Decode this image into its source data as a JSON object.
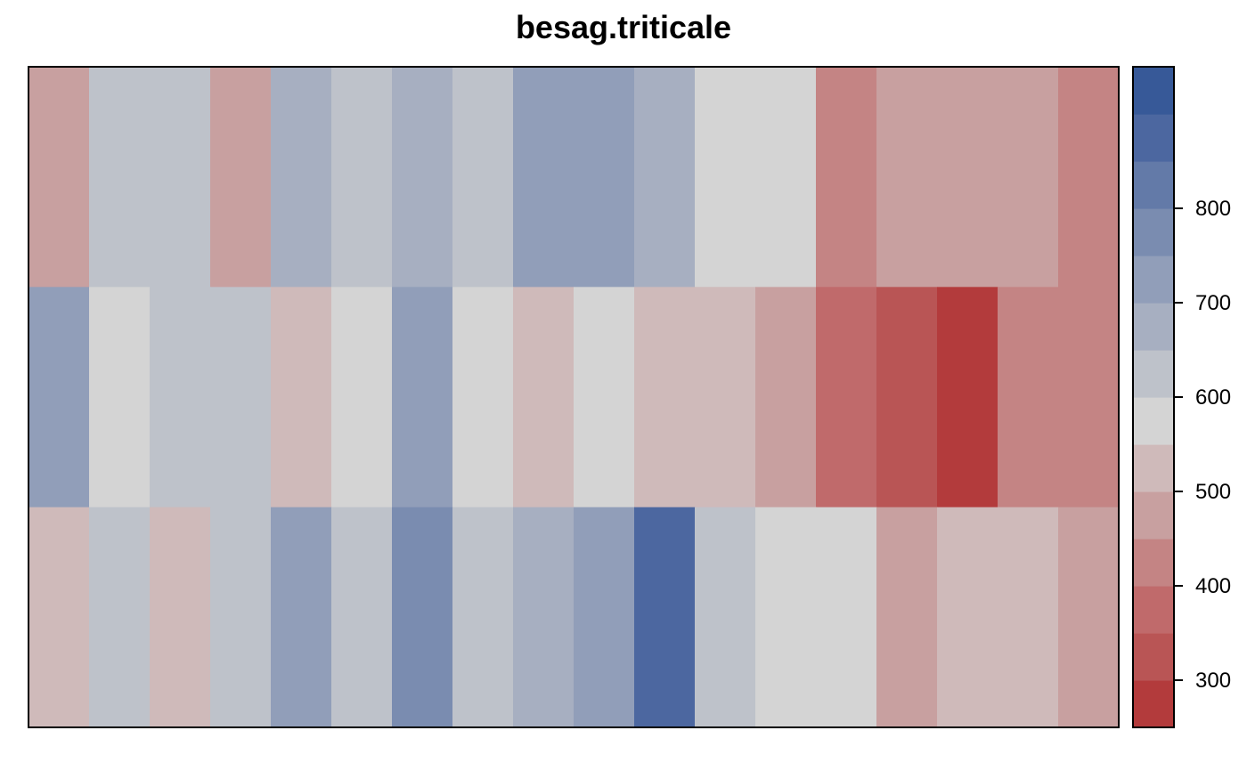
{
  "chart_data": {
    "type": "heatmap",
    "title": "besag.triticale",
    "xlabel": "",
    "ylabel": "",
    "n_cols": 18,
    "n_rows": 3,
    "rows_top_to_bottom": [
      [
        450,
        600,
        600,
        490,
        650,
        600,
        650,
        600,
        700,
        700,
        650,
        550,
        550,
        400,
        490,
        450,
        450,
        400
      ],
      [
        700,
        550,
        600,
        600,
        500,
        550,
        700,
        550,
        500,
        550,
        500,
        500,
        450,
        350,
        320,
        270,
        400,
        400
      ],
      [
        500,
        600,
        500,
        600,
        700,
        600,
        780,
        600,
        650,
        700,
        870,
        600,
        550,
        550,
        450,
        500,
        500,
        450
      ]
    ],
    "colorbar": {
      "min": 250,
      "max": 900,
      "ticks": [
        300,
        400,
        500,
        600,
        700,
        800
      ],
      "tick_labels": [
        "300",
        "400",
        "500",
        "600",
        "700",
        "800"
      ],
      "bins": [
        {
          "from": 250,
          "to": 300,
          "color": "#b33b3c"
        },
        {
          "from": 300,
          "to": 350,
          "color": "#b95555"
        },
        {
          "from": 350,
          "to": 400,
          "color": "#c06a6b"
        },
        {
          "from": 400,
          "to": 450,
          "color": "#c48484"
        },
        {
          "from": 450,
          "to": 500,
          "color": "#c8a0a0"
        },
        {
          "from": 500,
          "to": 550,
          "color": "#cfbaba"
        },
        {
          "from": 550,
          "to": 600,
          "color": "#d4d4d4"
        },
        {
          "from": 600,
          "to": 650,
          "color": "#bec2ca"
        },
        {
          "from": 650,
          "to": 700,
          "color": "#a7afc1"
        },
        {
          "from": 700,
          "to": 750,
          "color": "#919eb9"
        },
        {
          "from": 750,
          "to": 800,
          "color": "#7a8cb0"
        },
        {
          "from": 800,
          "to": 850,
          "color": "#637aa8"
        },
        {
          "from": 850,
          "to": 900,
          "color": "#4c67a0"
        },
        {
          "from": 900,
          "to": 950,
          "color": "#375998"
        }
      ]
    }
  }
}
